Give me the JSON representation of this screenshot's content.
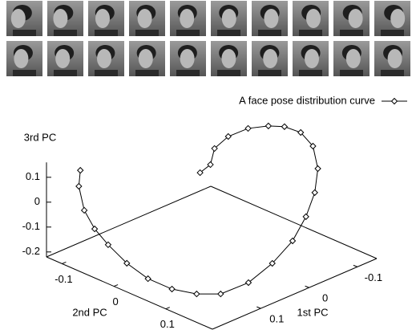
{
  "chart_data": {
    "type": "line3d",
    "xlabel": "1st PC",
    "ylabel": "2nd PC",
    "zlabel": "3rd PC",
    "xlim": [
      -0.14,
      0.2
    ],
    "ylim": [
      -0.13,
      0.19
    ],
    "zlim": [
      -0.22,
      0.16
    ],
    "xticks": [
      -0.1,
      0,
      0.1
    ],
    "yticks": [
      -0.1,
      0,
      0.1
    ],
    "zticks": [
      -0.2,
      -0.1,
      0,
      0.1
    ],
    "legend": "top-right",
    "x": [
      0.16,
      0.176,
      0.198,
      0.184,
      0.184,
      0.185,
      0.182,
      0.17,
      0.15,
      0.125,
      0.075,
      0.016,
      -0.041,
      -0.089,
      -0.132,
      -0.133,
      -0.14,
      -0.148,
      -0.139,
      -0.124,
      -0.097,
      -0.057,
      -0.02,
      0.011,
      0.041
    ],
    "y": [
      -0.102,
      -0.09,
      -0.059,
      -0.052,
      -0.026,
      0.011,
      0.049,
      0.084,
      0.113,
      0.136,
      0.143,
      0.134,
      0.12,
      0.101,
      0.078,
      0.083,
      0.067,
      0.036,
      0.013,
      -0.004,
      -0.018,
      -0.019,
      -0.011,
      0.01,
      0.018
    ],
    "series": [
      {
        "name": "A face pose distribution curve",
        "color": "#000000",
        "values": [
          0.12,
          0.08,
          0.03,
          -0.05,
          -0.09,
          -0.13,
          -0.16,
          -0.18,
          -0.19,
          -0.19,
          -0.18,
          -0.16,
          -0.13,
          -0.09,
          -0.05,
          0.05,
          0.12,
          0.14,
          0.15,
          0.15,
          0.15,
          0.15,
          0.14,
          0.12,
          0.12
        ]
      }
    ]
  }
}
